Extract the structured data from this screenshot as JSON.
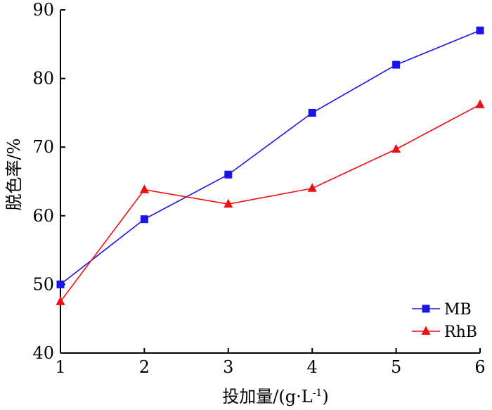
{
  "chart_data": {
    "type": "line",
    "title": "",
    "xlabel": "投加量/(g·L",
    "xlabel_sup": "-1",
    "xlabel_tail": ")",
    "ylabel": "脱色率/%",
    "x": [
      1,
      2,
      3,
      4,
      5,
      6
    ],
    "xlim": [
      1,
      6
    ],
    "ylim": [
      40,
      90
    ],
    "xticks": [
      "1",
      "2",
      "3",
      "4",
      "5",
      "6"
    ],
    "yticks": [
      "40",
      "50",
      "60",
      "70",
      "80",
      "90"
    ],
    "grid": false,
    "legend_position": "bottom-right",
    "series": [
      {
        "name": "MB",
        "values": [
          50,
          59.5,
          66,
          75,
          82,
          87
        ],
        "color": "#1a14e8",
        "marker": "square"
      },
      {
        "name": "RhB",
        "values": [
          47.5,
          63.8,
          61.7,
          64,
          69.7,
          76.2
        ],
        "color": "#ee0f12",
        "marker": "triangle"
      }
    ]
  }
}
